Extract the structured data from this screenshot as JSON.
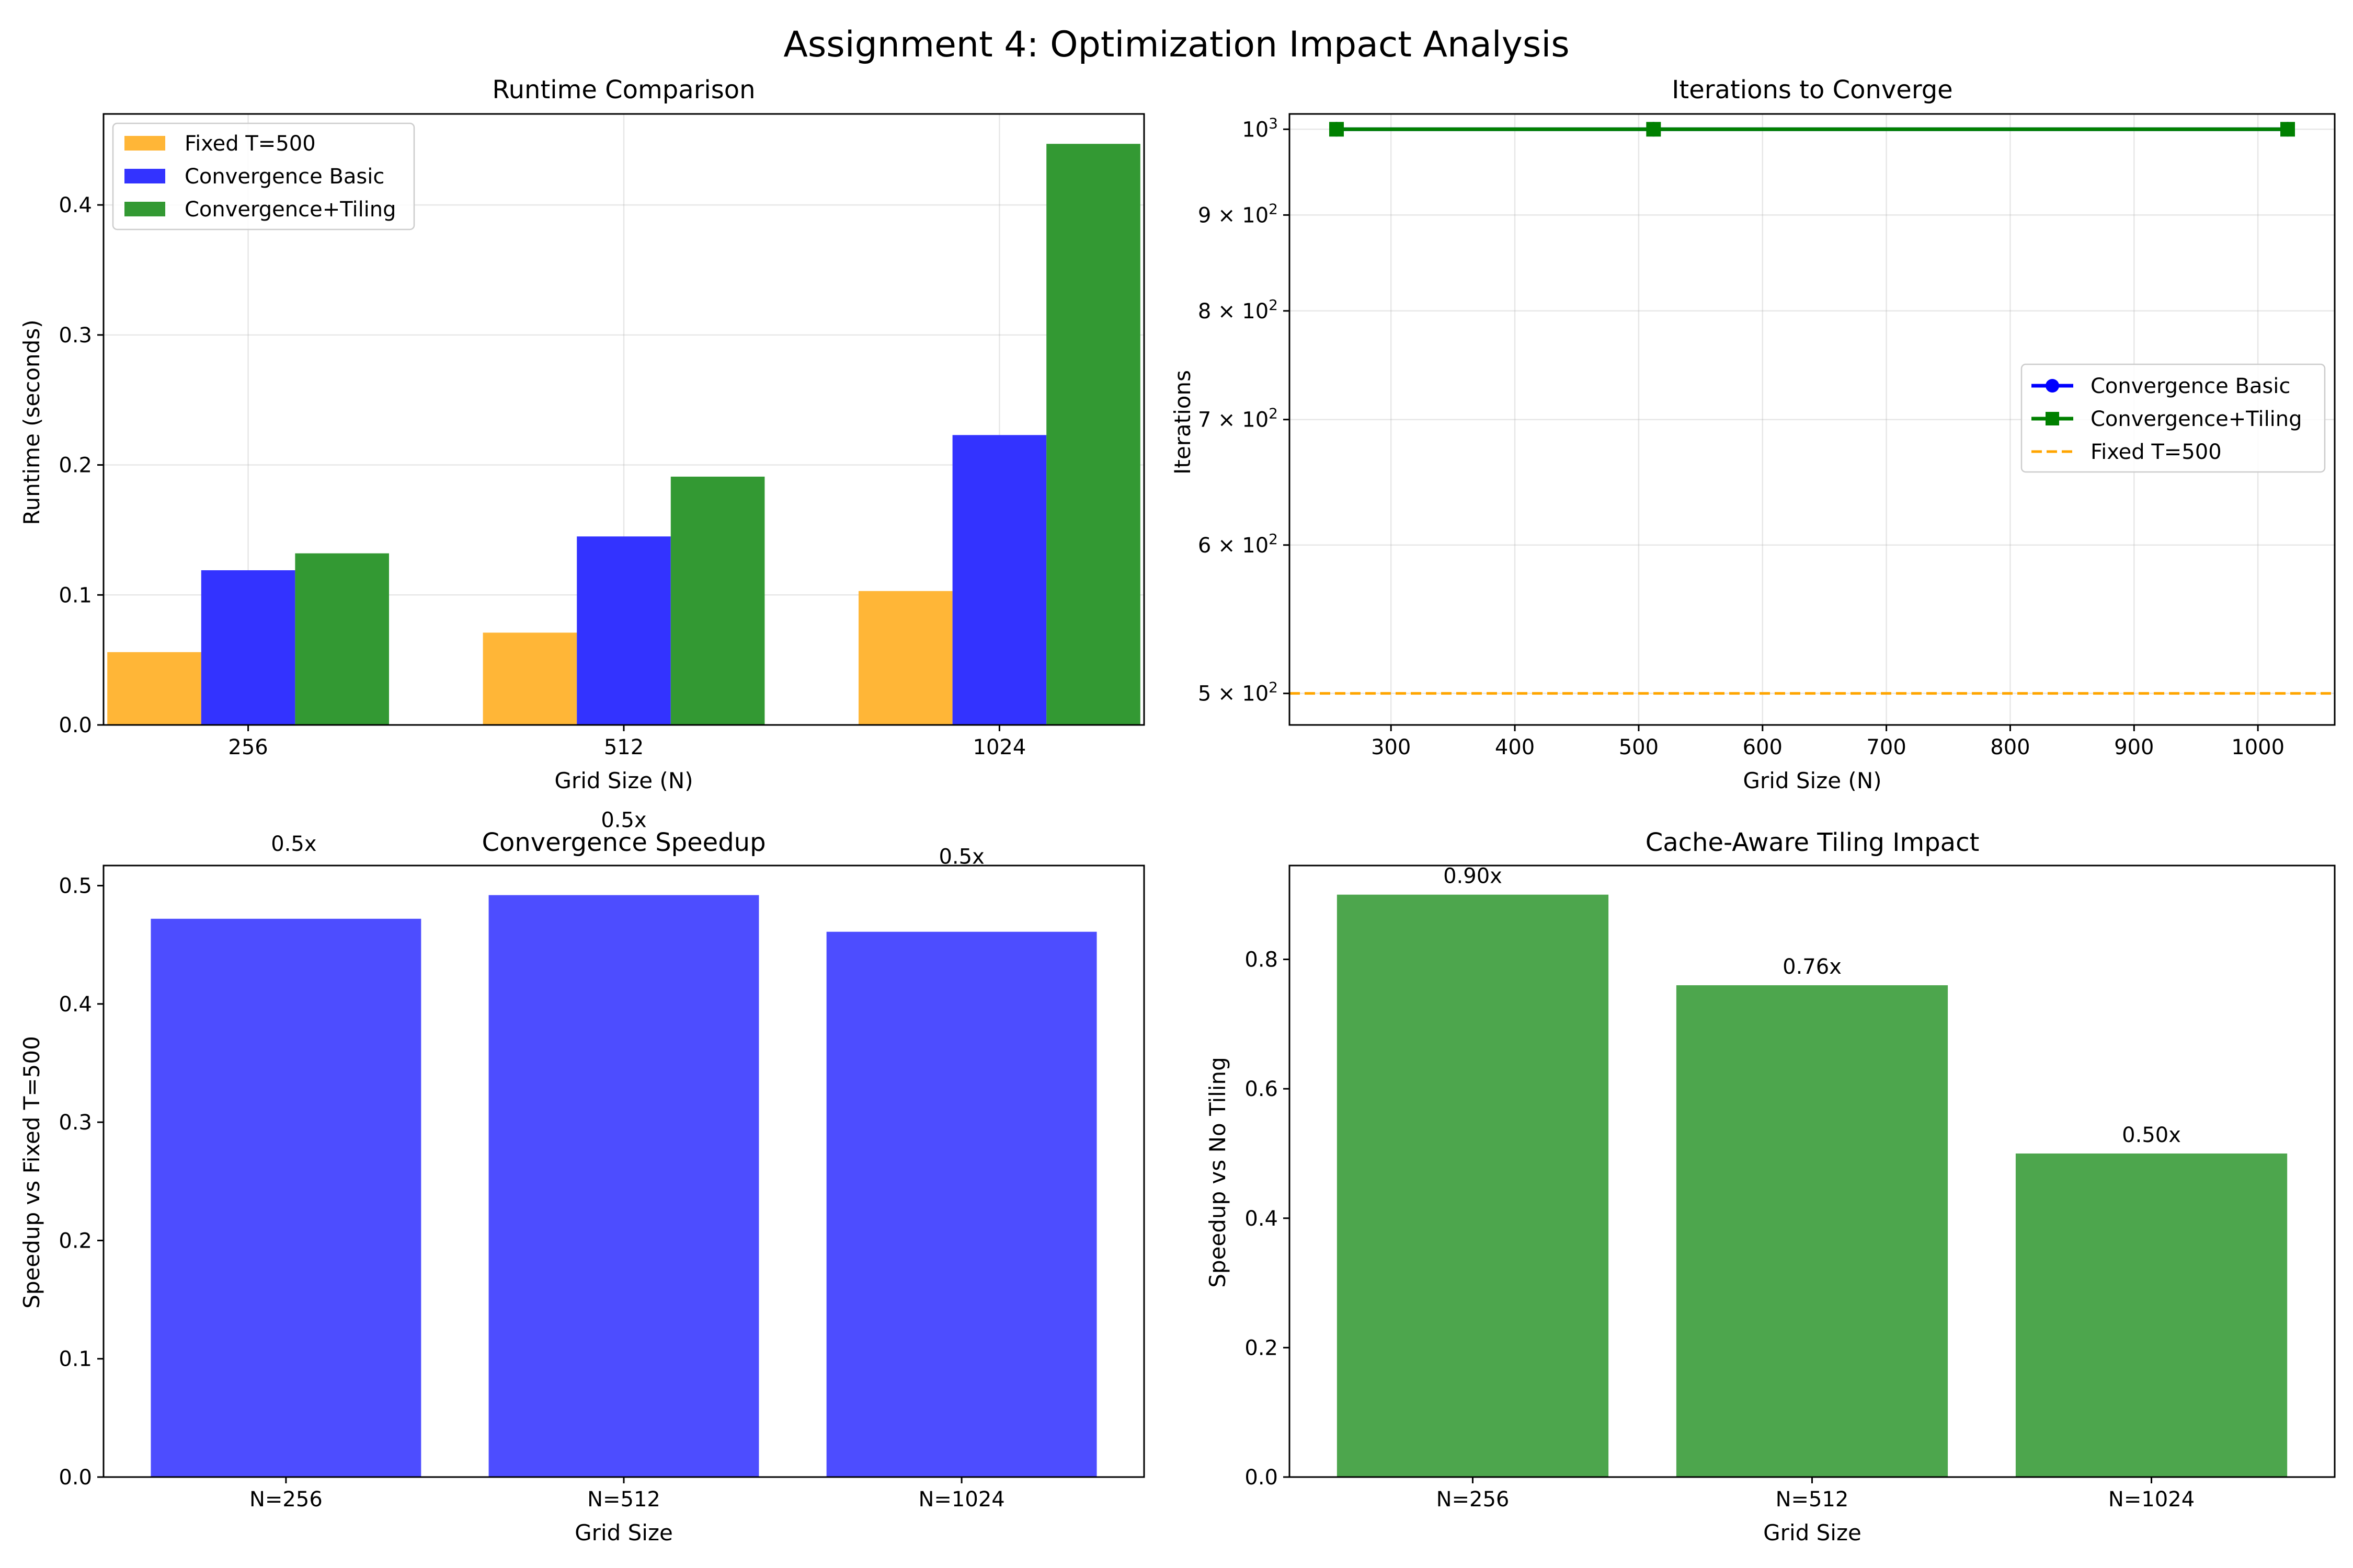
{
  "figure": {
    "title": "Assignment 4: Optimization Impact Analysis"
  },
  "chart_data": [
    {
      "type": "bar",
      "title": "Runtime Comparison",
      "xlabel": "Grid Size (N)",
      "ylabel": "Runtime (seconds)",
      "categories": [
        "256",
        "512",
        "1024"
      ],
      "series": [
        {
          "name": "Fixed T=500",
          "color": "#ffb637",
          "values": [
            0.056,
            0.071,
            0.103
          ]
        },
        {
          "name": "Convergence Basic",
          "color": "#3333ff",
          "values": [
            0.119,
            0.145,
            0.223
          ]
        },
        {
          "name": "Convergence+Tiling",
          "color": "#339933",
          "values": [
            0.132,
            0.191,
            0.447
          ]
        }
      ],
      "ylim": [
        0,
        0.47
      ],
      "yticks": [
        0.0,
        0.1,
        0.2,
        0.3,
        0.4
      ],
      "ytick_labels": [
        "0.0",
        "0.1",
        "0.2",
        "0.3",
        "0.4"
      ],
      "grid": true,
      "legend_position": "top-left"
    },
    {
      "type": "line",
      "title": "Iterations to Converge",
      "xlabel": "Grid Size (N)",
      "ylabel": "Iterations",
      "y_scale": "log",
      "xlim": [
        218,
        1062
      ],
      "ylim": [
        481,
        1019
      ],
      "xticks": [
        300,
        400,
        500,
        600,
        700,
        800,
        900,
        1000
      ],
      "xtick_labels": [
        "300",
        "400",
        "500",
        "600",
        "700",
        "800",
        "900",
        "1000"
      ],
      "yticks": [
        500,
        600,
        700,
        800,
        900,
        1000
      ],
      "ytick_labels": [
        {
          "base": "5 × 10",
          "exp": "2"
        },
        {
          "base": "6 × 10",
          "exp": "2"
        },
        {
          "base": "7 × 10",
          "exp": "2"
        },
        {
          "base": "8 × 10",
          "exp": "2"
        },
        {
          "base": "9 × 10",
          "exp": "2"
        },
        {
          "base": "10",
          "exp": "3"
        }
      ],
      "series": [
        {
          "name": "Convergence Basic",
          "color": "#0000ff",
          "marker": "circle",
          "line_style": "solid",
          "x": [
            256,
            512,
            1024
          ],
          "y": [
            1000,
            1000,
            1000
          ]
        },
        {
          "name": "Convergence+Tiling",
          "color": "#008000",
          "marker": "square",
          "line_style": "solid",
          "x": [
            256,
            512,
            1024
          ],
          "y": [
            1000,
            1000,
            1000
          ]
        },
        {
          "name": "Fixed T=500",
          "color": "#ffa500",
          "line_style": "dashed",
          "y": 500
        }
      ],
      "grid": true,
      "legend_position": "center-right"
    },
    {
      "type": "bar",
      "title": "Convergence Speedup",
      "xlabel": "Grid Size",
      "ylabel": "Speedup vs Fixed T=500",
      "categories": [
        "N=256",
        "N=512",
        "N=1024"
      ],
      "values": [
        0.472,
        0.492,
        0.461
      ],
      "data_labels": [
        "0.5x",
        "0.5x",
        "0.5x"
      ],
      "color": "#4d4dff",
      "ylim": [
        0,
        0.517
      ],
      "yticks": [
        0.0,
        0.1,
        0.2,
        0.3,
        0.4,
        0.5
      ],
      "ytick_labels": [
        "0.0",
        "0.1",
        "0.2",
        "0.3",
        "0.4",
        "0.5"
      ],
      "grid": false
    },
    {
      "type": "bar",
      "title": "Cache-Aware Tiling Impact",
      "xlabel": "Grid Size",
      "ylabel": "Speedup vs No Tiling",
      "categories": [
        "N=256",
        "N=512",
        "N=1024"
      ],
      "values": [
        0.9,
        0.76,
        0.5
      ],
      "data_labels": [
        "0.90x",
        "0.76x",
        "0.50x"
      ],
      "color": "#4da64d",
      "ylim": [
        0,
        0.945
      ],
      "yticks": [
        0.0,
        0.2,
        0.4,
        0.6,
        0.8
      ],
      "ytick_labels": [
        "0.0",
        "0.2",
        "0.4",
        "0.6",
        "0.8"
      ],
      "grid": false
    }
  ]
}
